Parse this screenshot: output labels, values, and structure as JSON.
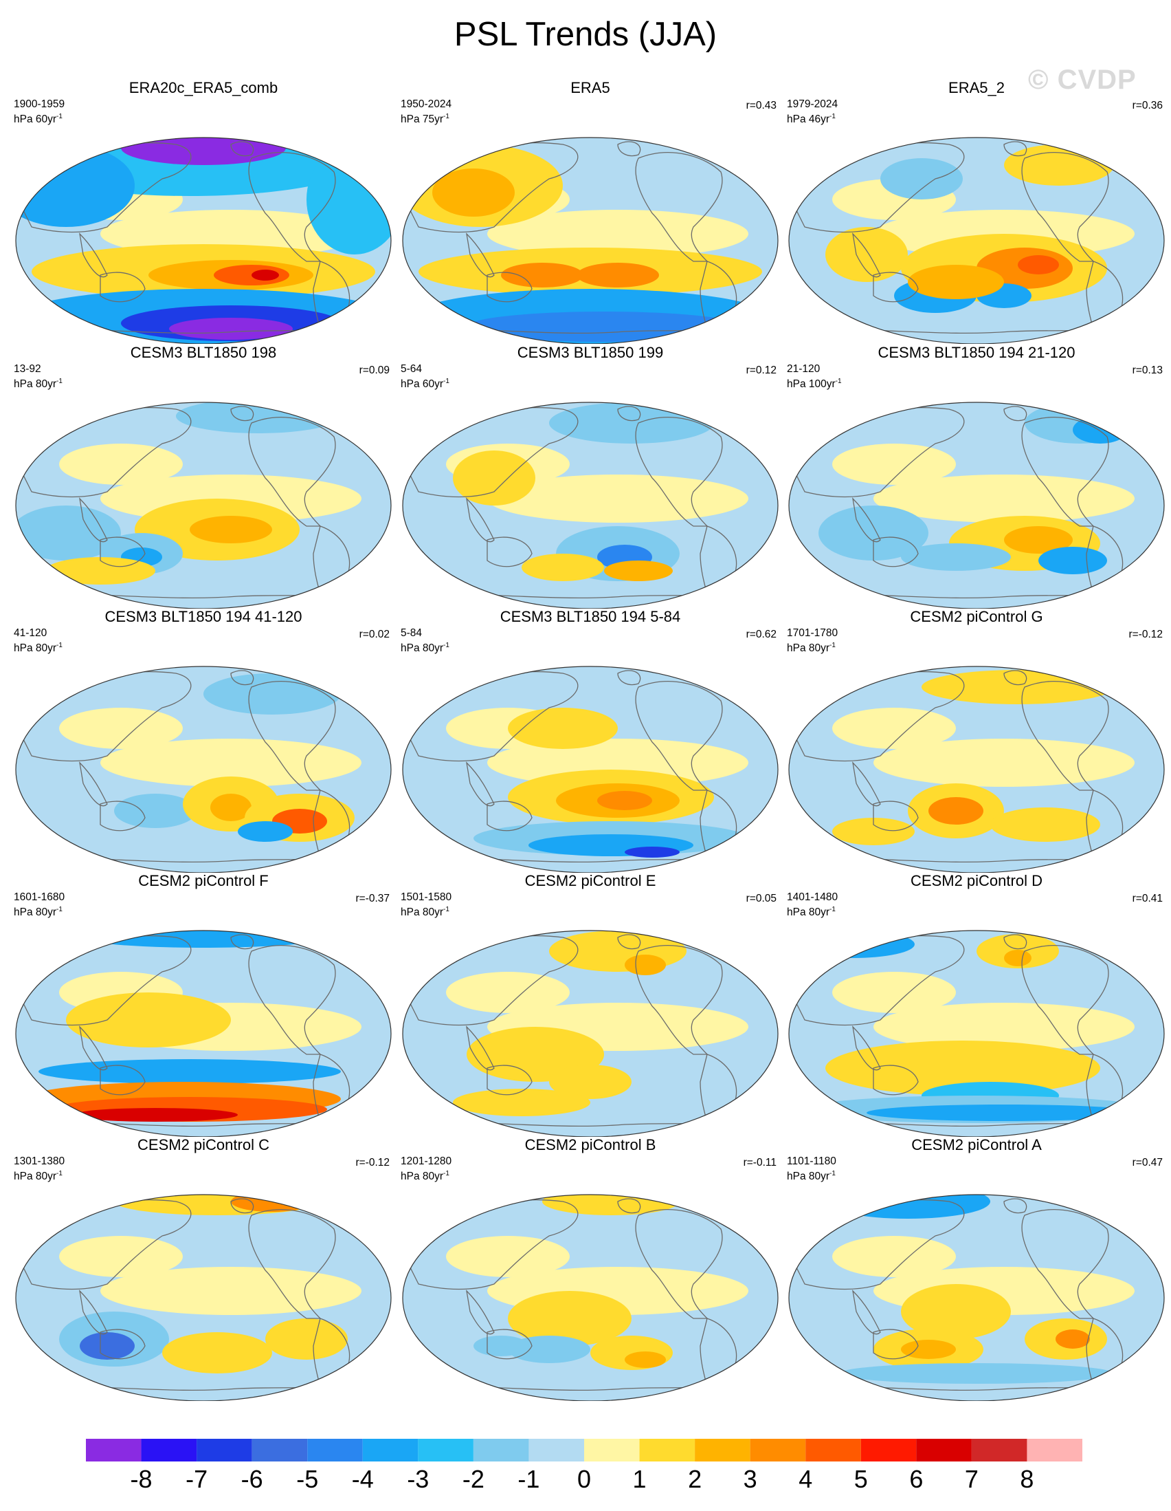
{
  "title": "PSL Trends (JJA)",
  "watermark": "© CVDP",
  "colors": {
    "land_outline": "#6b6b6b",
    "ocean_background": "#b3dbf2",
    "frame": "#333333"
  },
  "panels": [
    {
      "title": "ERA20c_ERA5_comb",
      "period": "1900-1959",
      "units_base": "hPa 60yr",
      "units_exp": "-1",
      "r": "",
      "pattern": "strong_polar"
    },
    {
      "title": "ERA5",
      "period": "1950-2024",
      "units_base": "hPa 75yr",
      "units_exp": "-1",
      "r": "r=0.43",
      "pattern": "era5"
    },
    {
      "title": "ERA5_2",
      "period": "1979-2024",
      "units_base": "hPa 46yr",
      "units_exp": "-1",
      "r": "r=0.36",
      "pattern": "era5_2"
    },
    {
      "title": "CESM3 BLT1850 198",
      "period": "13-92",
      "units_base": "hPa 80yr",
      "units_exp": "-1",
      "r": "r=0.09",
      "pattern": "mild_a"
    },
    {
      "title": "CESM3 BLT1850 199",
      "period": "5-64",
      "units_base": "hPa 60yr",
      "units_exp": "-1",
      "r": "r=0.12",
      "pattern": "mild_b"
    },
    {
      "title": "CESM3 BLT1850 194 21-120",
      "period": "21-120",
      "units_base": "hPa 100yr",
      "units_exp": "-1",
      "r": "r=0.13",
      "pattern": "mild_c"
    },
    {
      "title": "CESM3 BLT1850 194 41-120",
      "period": "41-120",
      "units_base": "hPa 80yr",
      "units_exp": "-1",
      "r": "r=0.02",
      "pattern": "mild_d"
    },
    {
      "title": "CESM3 BLT1850 194 5-84",
      "period": "5-84",
      "units_base": "hPa 80yr",
      "units_exp": "-1",
      "r": "r=0.62",
      "pattern": "mild_e"
    },
    {
      "title": "CESM2 piControl G",
      "period": "1701-1780",
      "units_base": "hPa 80yr",
      "units_exp": "-1",
      "r": "r=-0.12",
      "pattern": "mild_f"
    },
    {
      "title": "CESM2 piControl F",
      "period": "1601-1680",
      "units_base": "hPa 80yr",
      "units_exp": "-1",
      "r": "r=-0.37",
      "pattern": "south_red"
    },
    {
      "title": "CESM2 piControl E",
      "period": "1501-1580",
      "units_base": "hPa 80yr",
      "units_exp": "-1",
      "r": "r=0.05",
      "pattern": "weak"
    },
    {
      "title": "CESM2 piControl D",
      "period": "1401-1480",
      "units_base": "hPa 80yr",
      "units_exp": "-1",
      "r": "r=0.41",
      "pattern": "south_blue"
    },
    {
      "title": "CESM2 piControl C",
      "period": "1301-1380",
      "units_base": "hPa 80yr",
      "units_exp": "-1",
      "r": "r=-0.12",
      "pattern": "mild_g"
    },
    {
      "title": "CESM2 piControl B",
      "period": "1201-1280",
      "units_base": "hPa 80yr",
      "units_exp": "-1",
      "r": "r=-0.11",
      "pattern": "mild_h"
    },
    {
      "title": "CESM2 piControl A",
      "period": "1101-1180",
      "units_base": "hPa 80yr",
      "units_exp": "-1",
      "r": "r=0.47",
      "pattern": "mild_i"
    }
  ],
  "colorbar": {
    "labels": [
      "-8",
      "-7",
      "-6",
      "-5",
      "-4",
      "-3",
      "-2",
      "-1",
      "0",
      "1",
      "2",
      "3",
      "4",
      "5",
      "6",
      "7",
      "8"
    ],
    "colors": [
      "#8a2be2",
      "#2a12f5",
      "#1e3ce6",
      "#3b6ee0",
      "#2a86f0",
      "#1aa6f5",
      "#27c0f5",
      "#7fcbee",
      "#b3dbf2",
      "#fff6a4",
      "#ffdb2e",
      "#ffb300",
      "#ff8c00",
      "#ff5a00",
      "#ff1a00",
      "#d90000",
      "#d12828",
      "#ffb3b3"
    ]
  }
}
